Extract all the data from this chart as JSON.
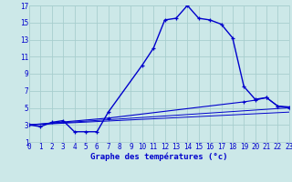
{
  "title": "Graphe des températures (°c)",
  "bg_color": "#cce8e8",
  "grid_color": "#a8cece",
  "line_color": "#0000cc",
  "x_min": 0,
  "x_max": 23,
  "y_min": 1,
  "y_max": 17,
  "x_ticks": [
    0,
    1,
    2,
    3,
    4,
    5,
    6,
    7,
    8,
    9,
    10,
    11,
    12,
    13,
    14,
    15,
    16,
    17,
    18,
    19,
    20,
    21,
    22,
    23
  ],
  "y_ticks": [
    1,
    3,
    5,
    7,
    9,
    11,
    13,
    15,
    17
  ],
  "curve1_x": [
    0,
    1,
    2,
    3,
    4,
    5,
    6,
    7,
    10,
    11,
    12,
    13,
    14,
    15,
    16,
    17,
    18,
    19,
    20,
    21,
    22,
    23
  ],
  "curve1_y": [
    3.0,
    2.8,
    3.3,
    3.5,
    2.2,
    2.2,
    2.2,
    4.5,
    10.0,
    12.0,
    15.3,
    15.5,
    17.0,
    15.5,
    15.3,
    14.8,
    13.2,
    7.5,
    6.0,
    6.2,
    5.2,
    5.1
  ],
  "curve2_x": [
    0,
    7,
    19,
    20,
    21,
    22,
    23
  ],
  "curve2_y": [
    3.0,
    3.8,
    5.7,
    5.9,
    6.2,
    5.2,
    5.0
  ],
  "curve3_x": [
    0,
    23
  ],
  "curve3_y": [
    3.0,
    5.0
  ],
  "curve4_x": [
    0,
    23
  ],
  "curve4_y": [
    3.0,
    4.5
  ],
  "tick_fontsize": 5.5,
  "label_fontsize": 6.5
}
